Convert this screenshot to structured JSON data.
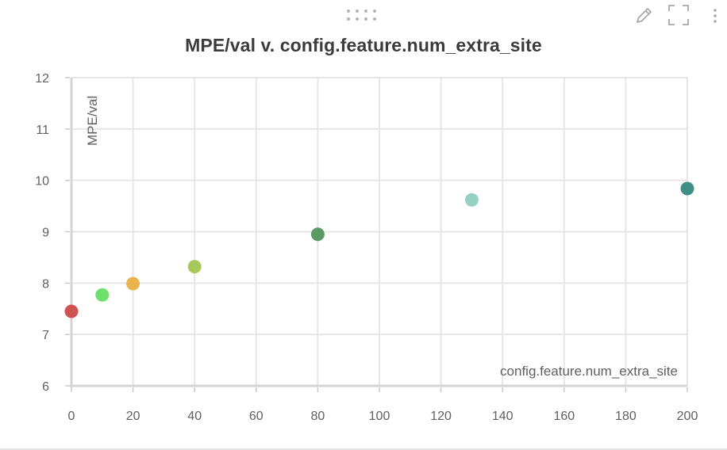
{
  "panel": {
    "drag_handle_icon": "drag-dots-icon",
    "edit_icon": "pencil-icon",
    "fullscreen_icon": "expand-icon",
    "more_icon": "more-vertical-icon"
  },
  "chart_data": {
    "type": "scatter",
    "title": "MPE/val v. config.feature.num_extra_site",
    "xlabel": "config.feature.num_extra_site",
    "ylabel": "MPE/val",
    "xlim": [
      0,
      200
    ],
    "ylim": [
      6,
      12
    ],
    "xticks": [
      0,
      20,
      40,
      60,
      80,
      100,
      120,
      140,
      160,
      180,
      200
    ],
    "yticks": [
      6,
      7,
      8,
      9,
      10,
      11,
      12
    ],
    "grid": true,
    "points": [
      {
        "x": 0,
        "y": 7.45,
        "color": "#d05252"
      },
      {
        "x": 10,
        "y": 7.77,
        "color": "#6fe06a"
      },
      {
        "x": 20,
        "y": 7.99,
        "color": "#e9b44c"
      },
      {
        "x": 40,
        "y": 8.32,
        "color": "#a7c95c"
      },
      {
        "x": 80,
        "y": 8.95,
        "color": "#5a9a63"
      },
      {
        "x": 130,
        "y": 9.62,
        "color": "#95d1c3"
      },
      {
        "x": 200,
        "y": 9.84,
        "color": "#3f8f86"
      }
    ]
  }
}
